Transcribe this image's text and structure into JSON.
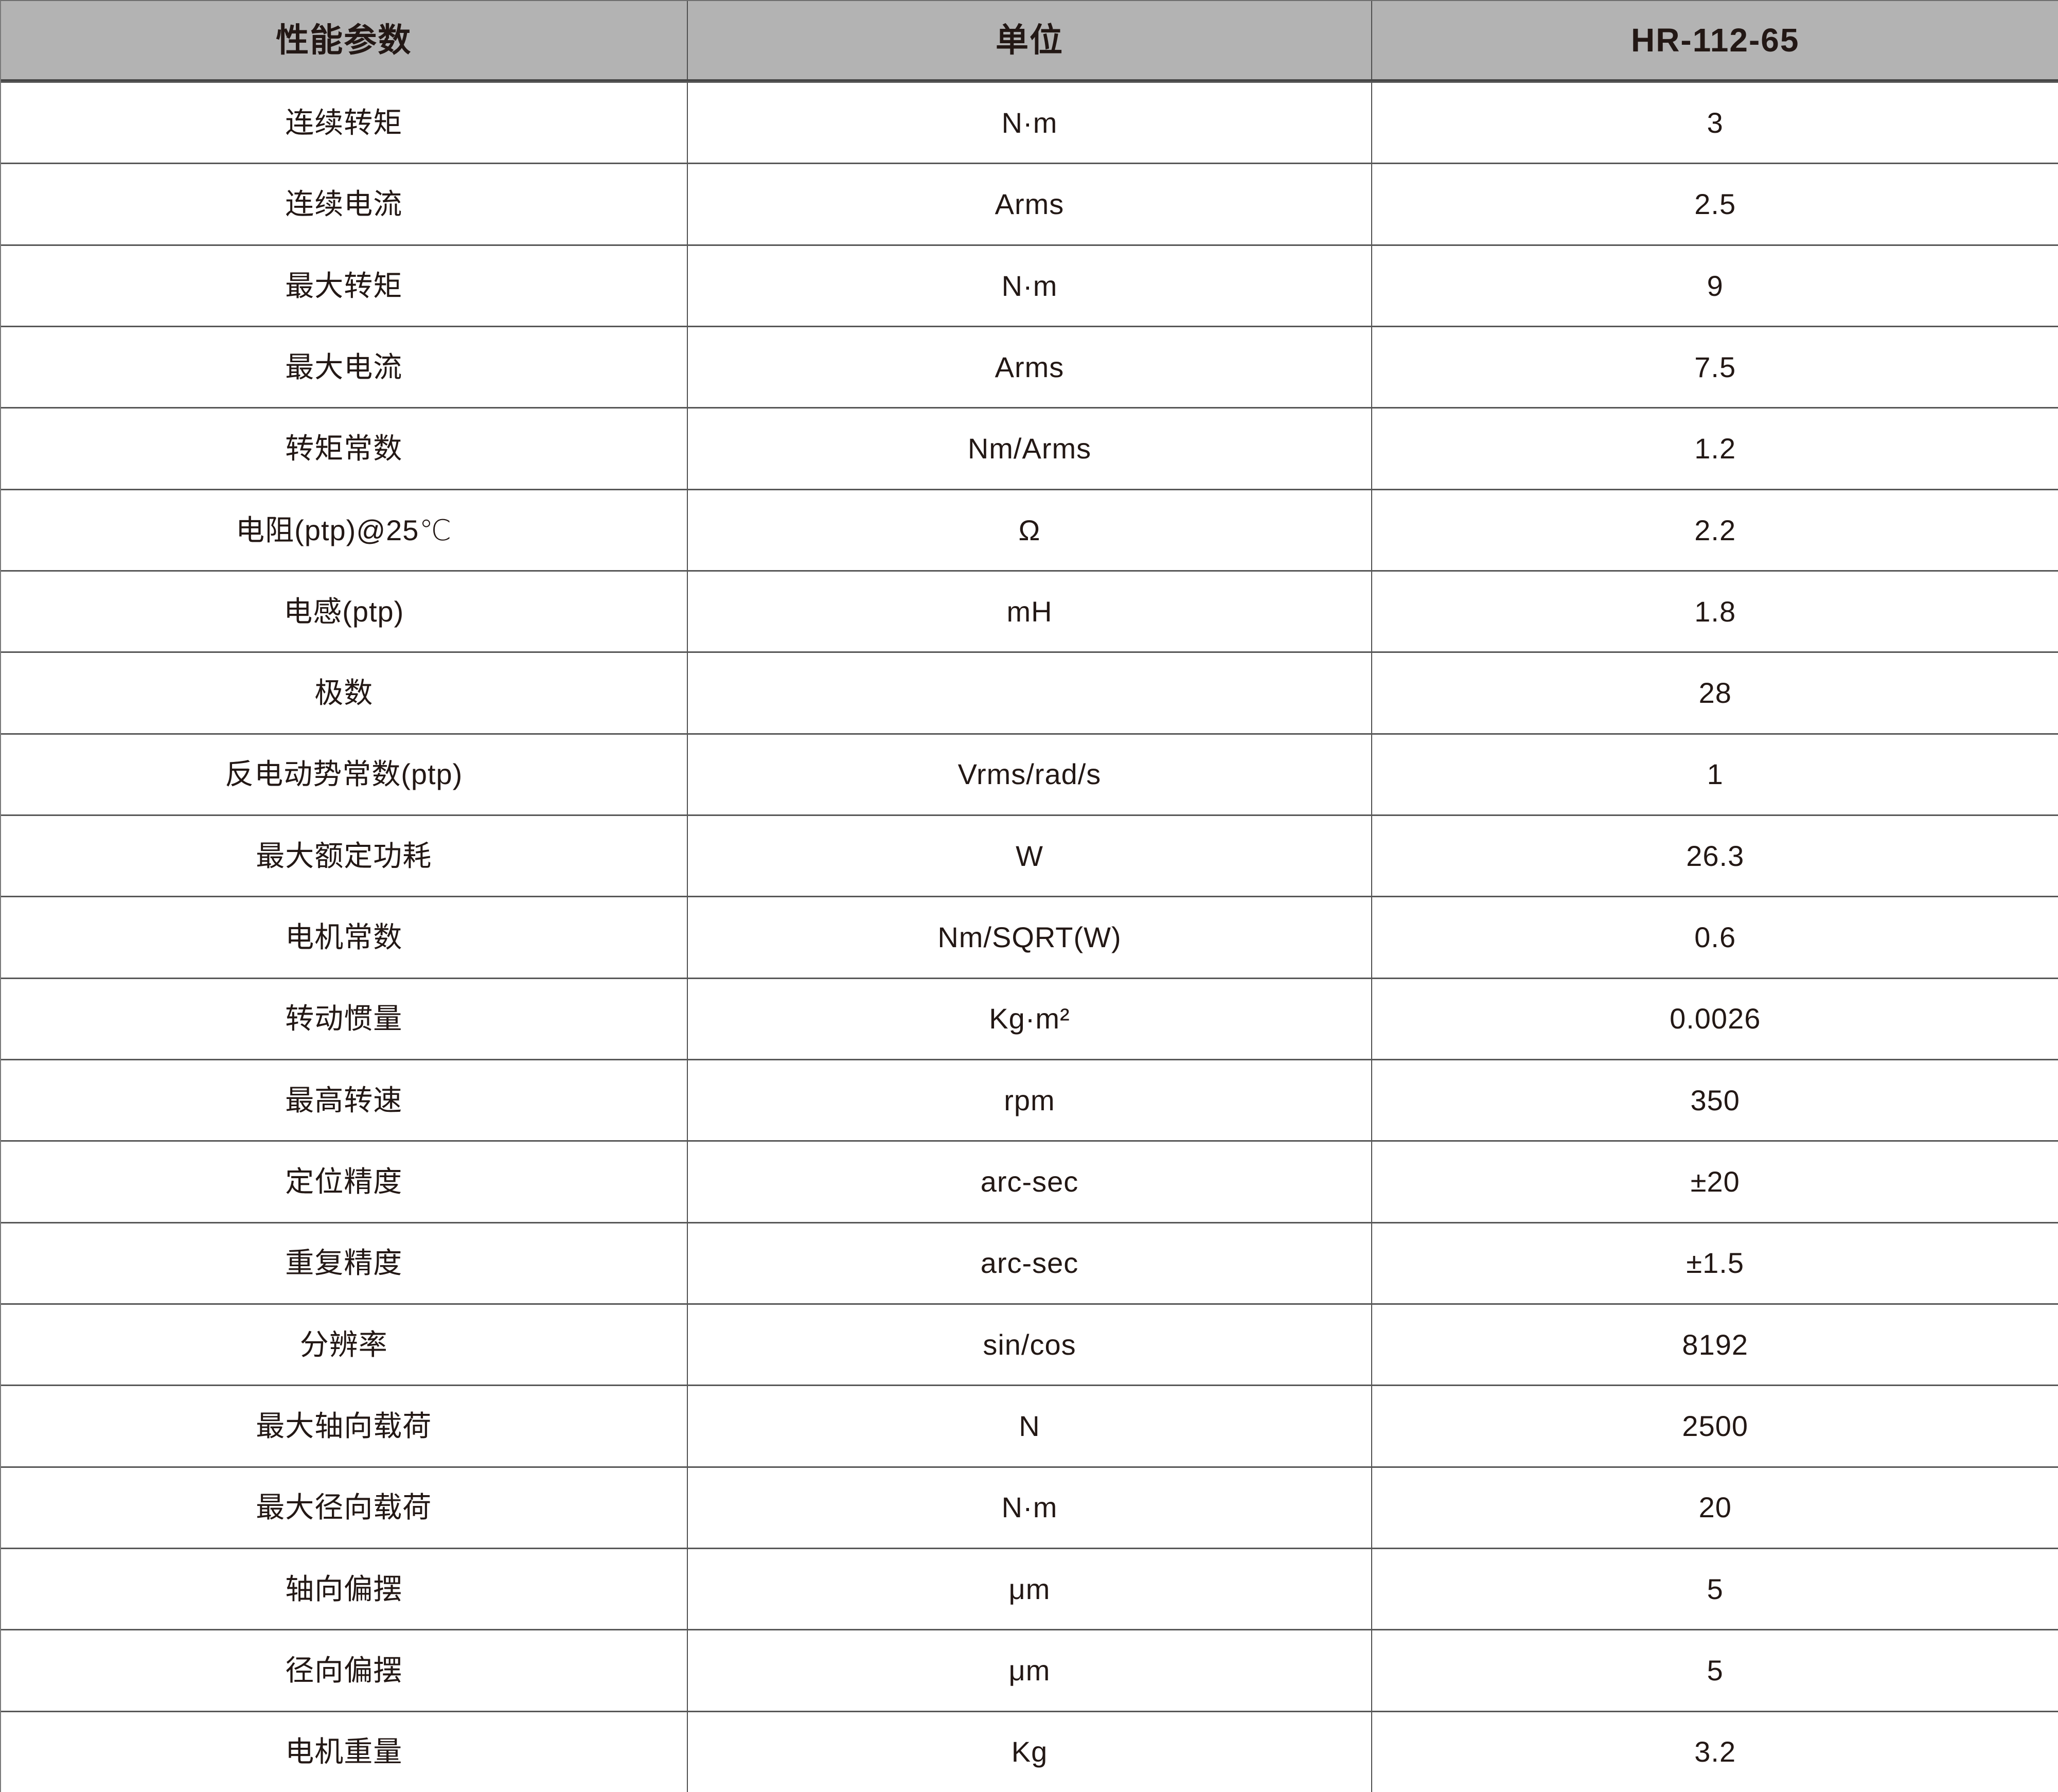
{
  "colors": {
    "header_bg": "#b3b3b3",
    "text": "#231815",
    "border": "#575757"
  },
  "table": {
    "columns": [
      "性能参数",
      "单位",
      "HR-112-65"
    ],
    "rows": [
      {
        "param": "连续转矩",
        "unit": "N·m",
        "value": "3"
      },
      {
        "param": "连续电流",
        "unit": "Arms",
        "value": "2.5"
      },
      {
        "param": "最大转矩",
        "unit": "N·m",
        "value": "9"
      },
      {
        "param": "最大电流",
        "unit": "Arms",
        "value": "7.5"
      },
      {
        "param": "转矩常数",
        "unit": "Nm/Arms",
        "value": "1.2"
      },
      {
        "param": "电阻(ptp)@25℃",
        "unit": "Ω",
        "value": "2.2"
      },
      {
        "param": "电感(ptp)",
        "unit": "mH",
        "value": "1.8"
      },
      {
        "param": "极数",
        "unit": "",
        "value": "28"
      },
      {
        "param": "反电动势常数(ptp)",
        "unit": "Vrms/rad/s",
        "value": "1"
      },
      {
        "param": "最大额定功耗",
        "unit": "W",
        "value": "26.3"
      },
      {
        "param": "电机常数",
        "unit": "Nm/SQRT(W)",
        "value": "0.6"
      },
      {
        "param": "转动惯量",
        "unit": "Kg·m²",
        "value": "0.0026"
      },
      {
        "param": "最高转速",
        "unit": "rpm",
        "value": "350"
      },
      {
        "param": "定位精度",
        "unit": "arc-sec",
        "value": "±20"
      },
      {
        "param": "重复精度",
        "unit": "arc-sec",
        "value": "±1.5"
      },
      {
        "param": "分辨率",
        "unit": "sin/cos",
        "value": "8192"
      },
      {
        "param": "最大轴向载荷",
        "unit": "N",
        "value": "2500"
      },
      {
        "param": "最大径向载荷",
        "unit": "N·m",
        "value": "20"
      },
      {
        "param": "轴向偏摆",
        "unit": "μm",
        "value": "5"
      },
      {
        "param": "径向偏摆",
        "unit": "μm",
        "value": "5"
      },
      {
        "param": "电机重量",
        "unit": "Kg",
        "value": "3.2"
      }
    ]
  }
}
